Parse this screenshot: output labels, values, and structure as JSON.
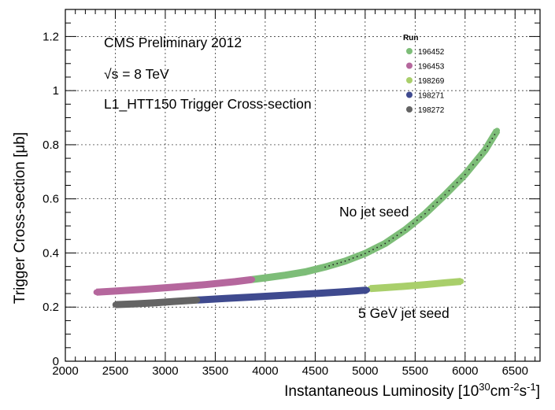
{
  "chart_data": {
    "type": "scatter",
    "ylabel": "Trigger Cross-section [μb]",
    "xlabel_parts": {
      "base": "Instantaneous Luminosity [10",
      "sup1": "30",
      "mid": "cm",
      "sup2": "-2",
      "mid2": "s",
      "sup3": "-1",
      "end": "]"
    },
    "xlim": [
      2000,
      6750
    ],
    "ylim": [
      0,
      1.3
    ],
    "x_ticks": [
      2000,
      2500,
      3000,
      3500,
      4000,
      4500,
      5000,
      5500,
      6000,
      6500
    ],
    "y_ticks": [
      0,
      0.2,
      0.4,
      0.6,
      0.8,
      1,
      1.2
    ],
    "x_tick_labels": [
      "2000",
      "2500",
      "3000",
      "3500",
      "4000",
      "4500",
      "5000",
      "5500",
      "6000",
      "6500"
    ],
    "y_tick_labels": [
      "0",
      "0.2",
      "0.4",
      "0.6",
      "0.8",
      "1",
      "1.2"
    ],
    "grid": true,
    "legend_position": "top-right",
    "legend_title": "Run",
    "annotations": [
      "CMS Preliminary 2012",
      "√s = 8 TeV",
      "L1_HTT150 Trigger Cross-section",
      "No jet seed",
      "5 GeV jet seed"
    ],
    "series": [
      {
        "name": "196452",
        "color": "#7dbd78",
        "group": "No jet seed",
        "x": [
          3870,
          4000,
          4200,
          4400,
          4600,
          4800,
          5000,
          5200,
          5400,
          5600,
          5800,
          6000,
          6200,
          6320
        ],
        "y": [
          0.302,
          0.308,
          0.318,
          0.33,
          0.348,
          0.37,
          0.398,
          0.435,
          0.485,
          0.545,
          0.615,
          0.69,
          0.78,
          0.852
        ]
      },
      {
        "name": "196453",
        "color": "#b5679d",
        "group": "No jet seed",
        "x": [
          2310,
          2500,
          2800,
          3100,
          3400,
          3700,
          3870
        ],
        "y": [
          0.255,
          0.259,
          0.266,
          0.274,
          0.283,
          0.294,
          0.302
        ]
      },
      {
        "name": "198269",
        "color": "#a9cf6b",
        "group": "5 GeV jet seed",
        "x": [
          5050,
          5200,
          5400,
          5600,
          5800,
          5960
        ],
        "y": [
          0.268,
          0.272,
          0.277,
          0.283,
          0.29,
          0.295
        ]
      },
      {
        "name": "198271",
        "color": "#3f4a8f",
        "group": "5 GeV jet seed",
        "x": [
          3320,
          3600,
          3900,
          4200,
          4500,
          4800,
          5020
        ],
        "y": [
          0.226,
          0.232,
          0.238,
          0.244,
          0.25,
          0.257,
          0.263
        ]
      },
      {
        "name": "198272",
        "color": "#646464",
        "group": "5 GeV jet seed",
        "x": [
          2500,
          2700,
          2900,
          3100,
          3320
        ],
        "y": [
          0.209,
          0.212,
          0.216,
          0.221,
          0.226
        ]
      }
    ]
  }
}
